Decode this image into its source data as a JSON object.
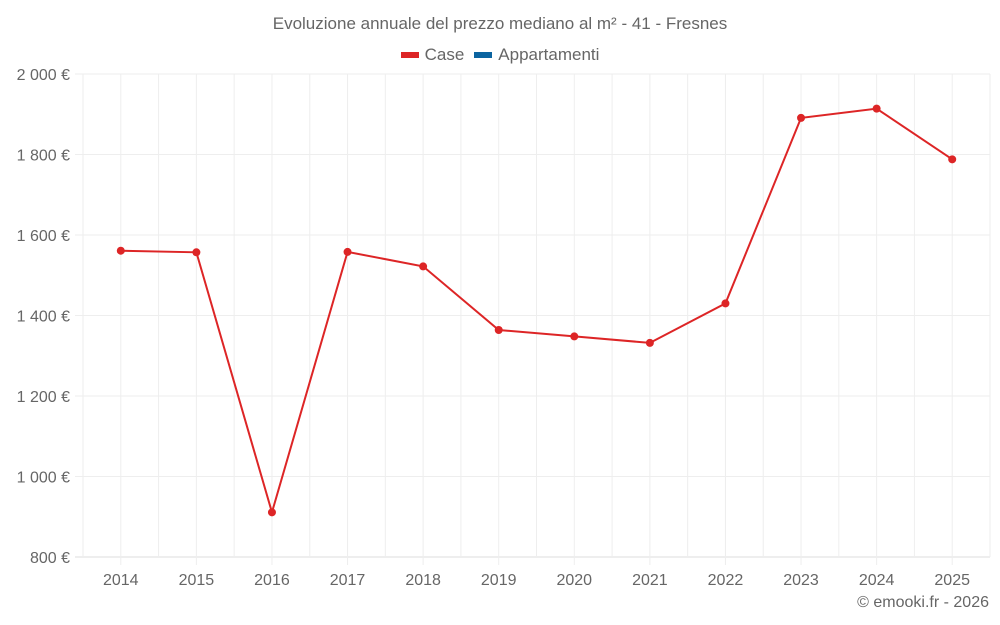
{
  "chart_data": {
    "type": "line",
    "title": "Evoluzione annuale del prezzo mediano al m² - 41 - Fresnes",
    "xlabel": "",
    "ylabel": "",
    "categories": [
      "2014",
      "2015",
      "2016",
      "2017",
      "2018",
      "2019",
      "2020",
      "2021",
      "2022",
      "2023",
      "2024",
      "2025"
    ],
    "series": [
      {
        "name": "Case",
        "color": "#dd2526",
        "values": [
          1561,
          1557,
          911,
          1558,
          1522,
          1364,
          1348,
          1332,
          1430,
          1891,
          1914,
          1788
        ]
      },
      {
        "name": "Appartamenti",
        "color": "#0b64a0",
        "values": []
      }
    ],
    "ylim": [
      800,
      2000
    ],
    "yticks": [
      800,
      1000,
      1200,
      1400,
      1600,
      1800,
      2000
    ],
    "ytick_labels": [
      "800 €",
      "1 000 €",
      "1 200 €",
      "1 400 €",
      "1 600 €",
      "1 800 €",
      "2 000 €"
    ],
    "grid": true,
    "legend_position": "top"
  },
  "legend": {
    "items": [
      {
        "label": "Case",
        "color": "#dd2526"
      },
      {
        "label": "Appartamenti",
        "color": "#0b64a0"
      }
    ]
  },
  "credit": "© emooki.fr - 2026"
}
